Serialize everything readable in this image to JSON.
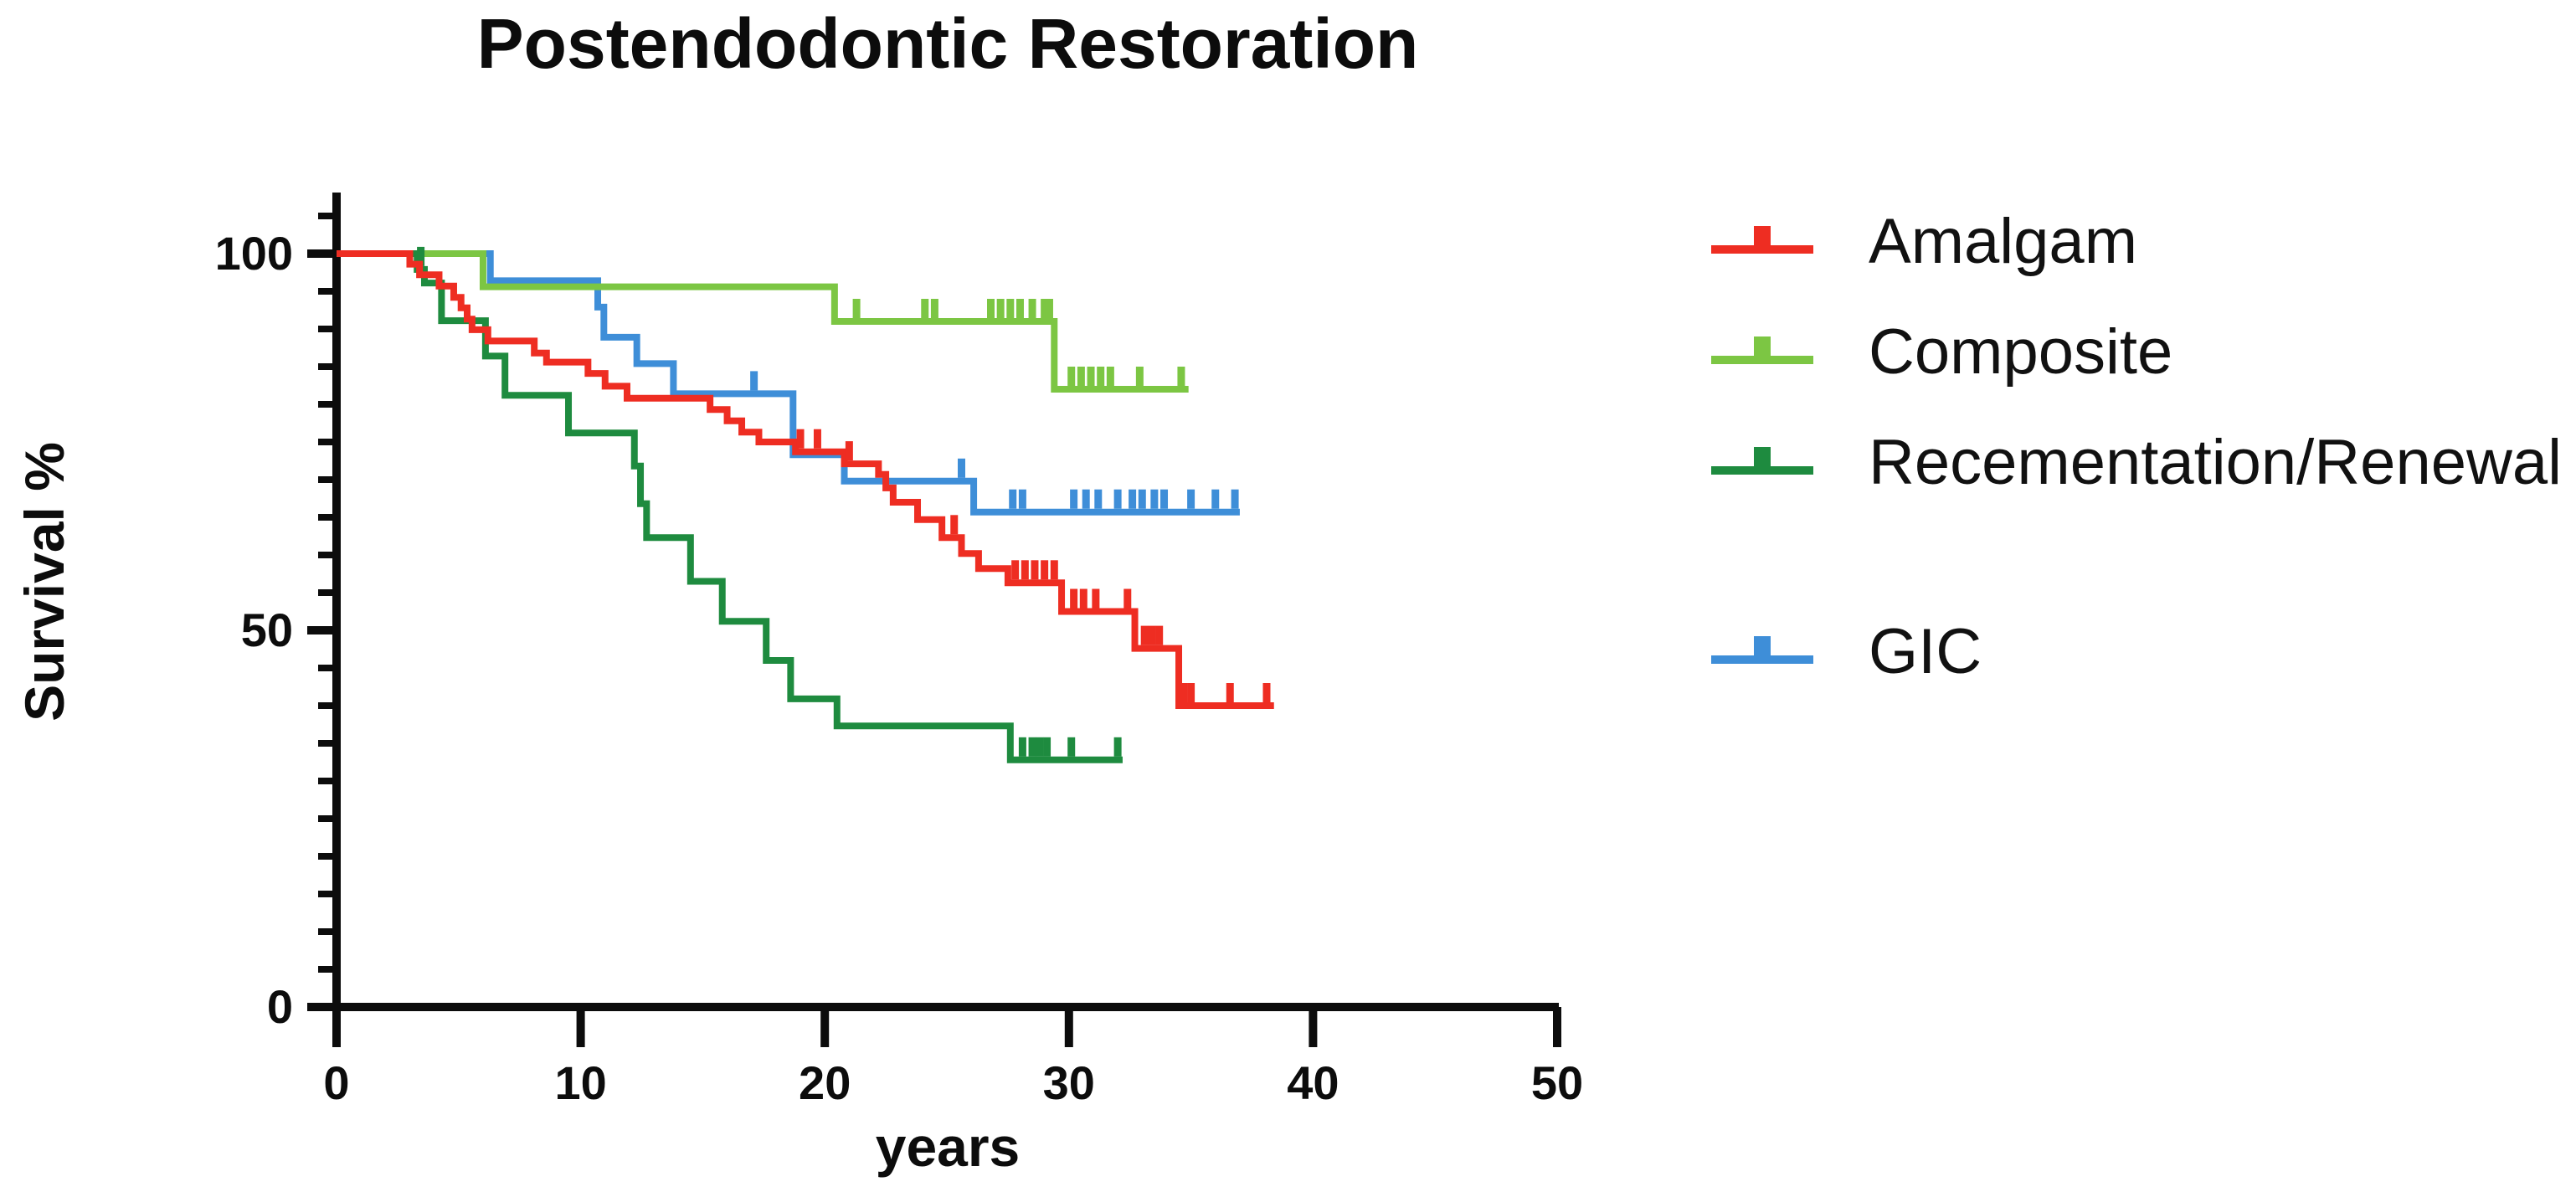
{
  "chart_data": {
    "type": "line",
    "subtype": "kaplan-meier-step-survival",
    "title": "Postendodontic Restoration",
    "xlabel": "years",
    "ylabel": "Survival %",
    "xlim": [
      0,
      50
    ],
    "ylim": [
      0,
      100
    ],
    "x_ticks": [
      0,
      10,
      20,
      30,
      40,
      50
    ],
    "y_ticks": [
      0,
      50,
      100
    ],
    "y_minor_tick_step": 5,
    "grid": false,
    "legend_position": "right-of-plot",
    "axis_color": "#0c0c0c",
    "background_color": "#ffffff",
    "draw_order": [
      "GIC",
      "Composite",
      "Recementation/Renewal",
      "Amalgam"
    ],
    "series": [
      {
        "name": "Amalgam",
        "color": "#ee2d22",
        "end_time": 38.4,
        "steps": [
          [
            0,
            100
          ],
          [
            3.0,
            98.6
          ],
          [
            3.4,
            97.2
          ],
          [
            4.2,
            95.7
          ],
          [
            4.8,
            94.2
          ],
          [
            5.1,
            92.8
          ],
          [
            5.35,
            91.3
          ],
          [
            5.55,
            89.9
          ],
          [
            6.2,
            88.4
          ],
          [
            8.1,
            86.8
          ],
          [
            8.6,
            85.6
          ],
          [
            10.3,
            84.1
          ],
          [
            11.0,
            82.4
          ],
          [
            11.9,
            80.8
          ],
          [
            15.3,
            79.3
          ],
          [
            16.0,
            77.8
          ],
          [
            16.6,
            76.3
          ],
          [
            17.3,
            75.0
          ],
          [
            18.8,
            73.7
          ],
          [
            20.8,
            72.1
          ],
          [
            22.2,
            70.7
          ],
          [
            22.5,
            68.9
          ],
          [
            22.8,
            67.0
          ],
          [
            23.8,
            64.7
          ],
          [
            24.8,
            62.3
          ],
          [
            25.6,
            60.2
          ],
          [
            26.3,
            58.2
          ],
          [
            27.5,
            56.3
          ],
          [
            29.7,
            52.5
          ],
          [
            32.7,
            47.6
          ],
          [
            34.5,
            40.0
          ]
        ],
        "censor_times": [
          19.0,
          19.7,
          21.0,
          25.3,
          27.8,
          28.2,
          28.6,
          29.0,
          29.4,
          30.2,
          30.6,
          31.1,
          32.4,
          33.1,
          33.4,
          33.7,
          34.7,
          35.0,
          36.6,
          38.1
        ]
      },
      {
        "name": "Composite",
        "color": "#7cc643",
        "end_time": 34.9,
        "steps": [
          [
            0,
            100
          ],
          [
            6.0,
            95.6
          ],
          [
            20.4,
            91.0
          ],
          [
            29.4,
            82.0
          ]
        ],
        "censor_times": [
          21.3,
          24.1,
          24.5,
          26.8,
          27.2,
          27.6,
          28.0,
          28.5,
          29.0,
          29.2,
          30.1,
          30.5,
          30.9,
          31.3,
          31.7,
          32.9,
          34.6
        ]
      },
      {
        "name": "Recementation/Renewal",
        "color": "#1e8b3f",
        "end_time": 32.2,
        "steps": [
          [
            0,
            100
          ],
          [
            3.3,
            97.9
          ],
          [
            3.6,
            96.1
          ],
          [
            4.3,
            91.1
          ],
          [
            6.1,
            86.4
          ],
          [
            6.9,
            81.2
          ],
          [
            9.5,
            76.2
          ],
          [
            12.2,
            71.8
          ],
          [
            12.45,
            66.8
          ],
          [
            12.7,
            62.3
          ],
          [
            14.5,
            56.5
          ],
          [
            15.8,
            51.2
          ],
          [
            17.6,
            46.0
          ],
          [
            18.6,
            40.9
          ],
          [
            20.5,
            37.3
          ],
          [
            27.6,
            32.8
          ]
        ],
        "censor_times": [
          3.45,
          28.1,
          28.5,
          28.8,
          29.1,
          30.1,
          32.0
        ]
      },
      {
        "name": "GIC",
        "color": "#3e8ed8",
        "end_time": 37.0,
        "steps": [
          [
            0,
            100
          ],
          [
            6.3,
            96.4
          ],
          [
            10.7,
            92.9
          ],
          [
            10.95,
            88.9
          ],
          [
            12.3,
            85.4
          ],
          [
            13.8,
            81.4
          ],
          [
            18.7,
            73.3
          ],
          [
            20.8,
            69.8
          ],
          [
            26.1,
            65.7
          ]
        ],
        "censor_times": [
          17.1,
          25.6,
          27.7,
          28.1,
          30.2,
          30.7,
          31.2,
          32.0,
          32.6,
          33.0,
          33.5,
          33.9,
          35.0,
          36.0,
          36.8
        ]
      }
    ]
  }
}
